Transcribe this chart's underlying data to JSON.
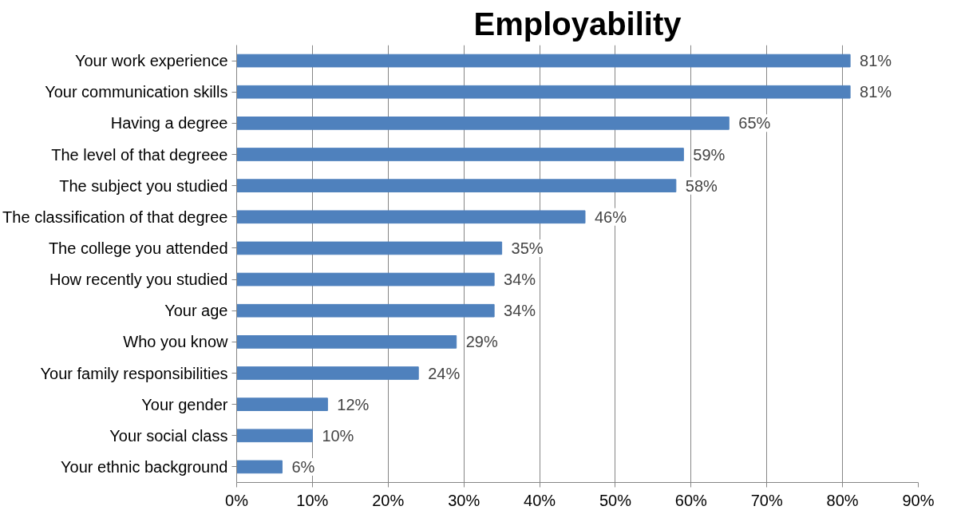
{
  "chart_data": {
    "type": "bar",
    "orientation": "horizontal",
    "title": "Employability",
    "categories": [
      "Your work experience",
      "Your communication skills",
      "Having a degree",
      "The level of that degreee",
      "The subject you studied",
      "The classification of that degree",
      "The college you attended",
      "How recently you studied",
      "Your age",
      "Who you know",
      "Your family responsibilities",
      "Your gender",
      "Your social class",
      "Your ethnic background"
    ],
    "values": [
      81,
      81,
      65,
      59,
      58,
      46,
      35,
      34,
      34,
      29,
      24,
      12,
      10,
      6
    ],
    "value_labels": [
      "81%",
      "81%",
      "65%",
      "59%",
      "58%",
      "46%",
      "35%",
      "34%",
      "34%",
      "29%",
      "24%",
      "12%",
      "10%",
      "6%"
    ],
    "color": "#4f81bd",
    "xlim": [
      0,
      90
    ],
    "xticks": [
      {
        "value": 0,
        "label": "0%"
      },
      {
        "value": 10,
        "label": "10%"
      },
      {
        "value": 20,
        "label": "20%"
      },
      {
        "value": 30,
        "label": "30%"
      },
      {
        "value": 40,
        "label": "40%"
      },
      {
        "value": 50,
        "label": "50%"
      },
      {
        "value": 60,
        "label": "60%"
      },
      {
        "value": 70,
        "label": "70%"
      },
      {
        "value": 80,
        "label": "80%"
      },
      {
        "value": 90,
        "label": "90%"
      }
    ],
    "grid": "x"
  }
}
